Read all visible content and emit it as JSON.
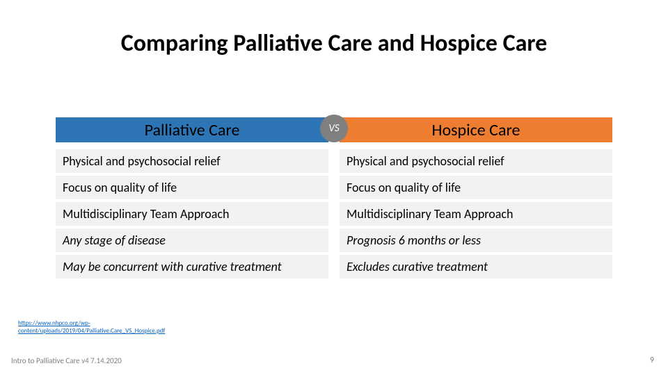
{
  "title": {
    "text": "Comparing Palliative Care and Hospice Care",
    "fontsize": 34,
    "color": "#000000"
  },
  "headers": {
    "left": {
      "label": "Palliative Care",
      "bg": "#2e75b6",
      "color": "#000000",
      "fontsize": 24
    },
    "right": {
      "label": "Hospice Care",
      "bg": "#ed7d31",
      "color": "#000000",
      "fontsize": 24
    },
    "vs": {
      "label": "VS",
      "bg": "#808080",
      "color": "#ffffff",
      "size": 40,
      "fontsize": 15
    }
  },
  "rows": {
    "fontsize": 18,
    "cell_bg": "#f2f2f2",
    "left": [
      {
        "text": "Physical and psychosocial relief",
        "italic": false
      },
      {
        "text": "Focus on quality of life",
        "italic": false
      },
      {
        "text": "Multidisciplinary Team Approach",
        "italic": false
      },
      {
        "text": "Any stage of disease",
        "italic": true
      },
      {
        "text": "May be concurrent with curative treatment",
        "italic": true
      }
    ],
    "right": [
      {
        "text": "Physical and psychosocial relief",
        "italic": false
      },
      {
        "text": "Focus on quality of life",
        "italic": false
      },
      {
        "text": "Multidisciplinary Team Approach",
        "italic": false
      },
      {
        "text": "Prognosis 6 months or less",
        "italic": true
      },
      {
        "text": "Excludes curative treatment",
        "italic": true
      }
    ]
  },
  "source_link": {
    "text": "https://www.nhpco.org/wp-\ncontent/uploads/2019/04/Palliative.Care_VS_Hospice.pdf",
    "color": "#0563c1",
    "fontsize": 9
  },
  "footer": {
    "text": "Intro to Palliative Care v4 7.14.2020",
    "color": "#7f7f7f",
    "fontsize": 11
  },
  "page_number": {
    "text": "9",
    "color": "#7f7f7f",
    "fontsize": 12
  }
}
